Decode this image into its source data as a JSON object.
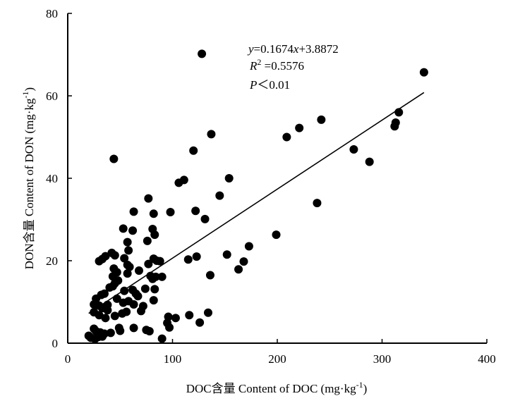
{
  "chart_data": {
    "type": "scatter",
    "xlabel": "DOC含量 Content of  DOC (mg·kg⁻¹)",
    "ylabel": "DON含量 Content of  DON (mg·kg⁻¹)",
    "xlim": [
      0,
      400
    ],
    "ylim": [
      0,
      80
    ],
    "x_ticks": [
      0,
      100,
      200,
      300,
      400
    ],
    "y_ticks": [
      0,
      20,
      40,
      60,
      80
    ],
    "x_tick_labels": [
      "0",
      "100",
      "200",
      "300",
      "400"
    ],
    "y_tick_labels": [
      "0",
      "20",
      "40",
      "60",
      "80"
    ],
    "grid": false,
    "annotation": {
      "equation": "y=0.1674x+3.8872",
      "r2": "R² =0.5576",
      "p": "P＜0.01"
    },
    "trendline": {
      "slope": 0.1674,
      "intercept": 3.8872,
      "x_range": [
        20,
        340
      ]
    },
    "points": [
      [
        128,
        70.2
      ],
      [
        340,
        65.7
      ],
      [
        316,
        56
      ],
      [
        313,
        53.5
      ],
      [
        312,
        52.6
      ],
      [
        242,
        54.2
      ],
      [
        221,
        52.2
      ],
      [
        209,
        50
      ],
      [
        273,
        47
      ],
      [
        288,
        44
      ],
      [
        238,
        34
      ],
      [
        137,
        50.7
      ],
      [
        120,
        46.7
      ],
      [
        44,
        44.7
      ],
      [
        154,
        40
      ],
      [
        111,
        39.6
      ],
      [
        106,
        38.9
      ],
      [
        145,
        35.8
      ],
      [
        77,
        35.1
      ],
      [
        63,
        31.9
      ],
      [
        82,
        31.4
      ],
      [
        98,
        31.8
      ],
      [
        122,
        32.1
      ],
      [
        131,
        30.1
      ],
      [
        53,
        27.8
      ],
      [
        62,
        27.3
      ],
      [
        81,
        27.7
      ],
      [
        83,
        26.3
      ],
      [
        57,
        24.5
      ],
      [
        76,
        24.8
      ],
      [
        58,
        22.5
      ],
      [
        54,
        20.6
      ],
      [
        57,
        19
      ],
      [
        59,
        18.5
      ],
      [
        42,
        21.9
      ],
      [
        45,
        21.3
      ],
      [
        36,
        21.1
      ],
      [
        33,
        20.4
      ],
      [
        30,
        19.9
      ],
      [
        82,
        20.5
      ],
      [
        85,
        20
      ],
      [
        88,
        19.9
      ],
      [
        77,
        19.2
      ],
      [
        79,
        16.3
      ],
      [
        84,
        16.1
      ],
      [
        90,
        16.1
      ],
      [
        81,
        15.6
      ],
      [
        123,
        21
      ],
      [
        115,
        20.3
      ],
      [
        152,
        21.5
      ],
      [
        173,
        23.5
      ],
      [
        168,
        19.8
      ],
      [
        163,
        17.9
      ],
      [
        199,
        26.3
      ],
      [
        136,
        16.5
      ],
      [
        44,
        18.1
      ],
      [
        47,
        17.2
      ],
      [
        43,
        16.2
      ],
      [
        48,
        15.2
      ],
      [
        43,
        13.8
      ],
      [
        45,
        14.5
      ],
      [
        40,
        13.5
      ],
      [
        54,
        12.7
      ],
      [
        62,
        12.9
      ],
      [
        65,
        12
      ],
      [
        74,
        13.2
      ],
      [
        83,
        13.1
      ],
      [
        67,
        11.4
      ],
      [
        58,
        10.2
      ],
      [
        53,
        9.8
      ],
      [
        63,
        9.4
      ],
      [
        72,
        9
      ],
      [
        82,
        10.4
      ],
      [
        35,
        12
      ],
      [
        32,
        11.7
      ],
      [
        27,
        10.8
      ],
      [
        25,
        9.4
      ],
      [
        30,
        9.1
      ],
      [
        33,
        8.5
      ],
      [
        38,
        9.3
      ],
      [
        25,
        7.5
      ],
      [
        30,
        6.8
      ],
      [
        36,
        6.1
      ],
      [
        38,
        8
      ],
      [
        52,
        7.2
      ],
      [
        56,
        7.6
      ],
      [
        45,
        6.6
      ],
      [
        70,
        7.8
      ],
      [
        96,
        6.4
      ],
      [
        103,
        6.1
      ],
      [
        116,
        6.8
      ],
      [
        134,
        7.4
      ],
      [
        95,
        4.9
      ],
      [
        97,
        3.8
      ],
      [
        126,
        5
      ],
      [
        63,
        3.7
      ],
      [
        75,
        3.2
      ],
      [
        78,
        2.9
      ],
      [
        49,
        3.7
      ],
      [
        50,
        3
      ],
      [
        41,
        2.5
      ],
      [
        35,
        2.3
      ],
      [
        25,
        3.5
      ],
      [
        27,
        2.9
      ],
      [
        31,
        2.6
      ],
      [
        33,
        1.6
      ],
      [
        20,
        1.8
      ],
      [
        22,
        1.3
      ],
      [
        26,
        1
      ],
      [
        29,
        1.5
      ],
      [
        90,
        1.1
      ],
      [
        68,
        17.6
      ],
      [
        57,
        16.9
      ],
      [
        47,
        10.8
      ]
    ]
  }
}
